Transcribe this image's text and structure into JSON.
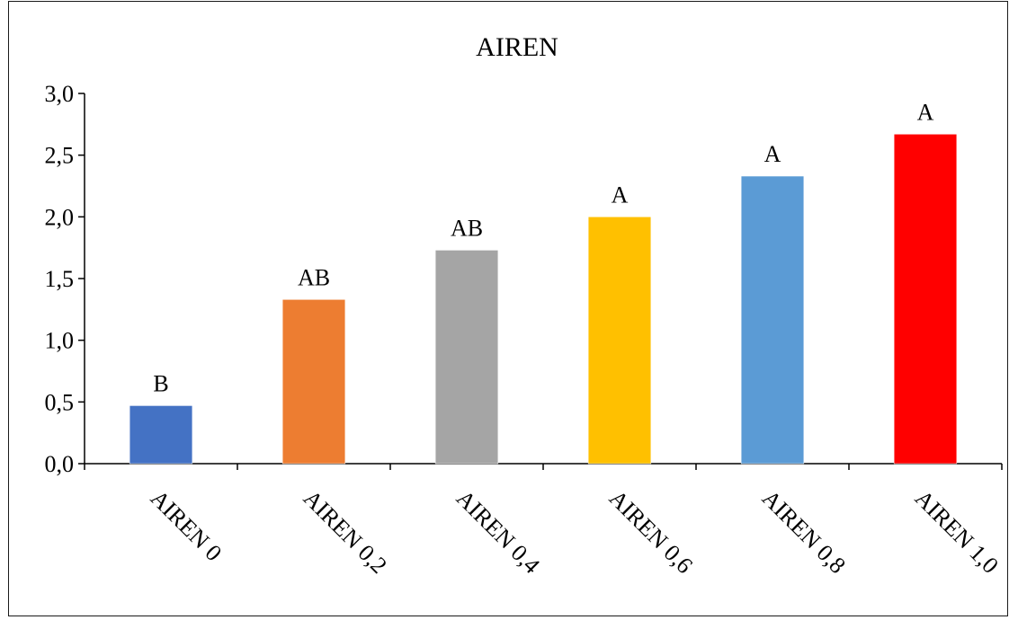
{
  "chart_data": {
    "type": "bar",
    "title": "AIREN",
    "xlabel": "",
    "ylabel": "",
    "categories": [
      "AIREN 0",
      "AIREN 0,2",
      "AIREN 0,4",
      "AIREN 0,6",
      "AIREN 0,8",
      "AIREN 1,0"
    ],
    "values": [
      0.47,
      1.33,
      1.73,
      2.0,
      2.33,
      2.67
    ],
    "data_labels": [
      "B",
      "AB",
      "AB",
      "A",
      "A",
      "A"
    ],
    "colors": [
      "#4472C4",
      "#ED7D31",
      "#A5A5A5",
      "#FFC000",
      "#5B9BD5",
      "#FF0000"
    ],
    "ylim": [
      0,
      3
    ],
    "yticks": [
      "0,0",
      "0,5",
      "1,0",
      "1,5",
      "2,0",
      "2,5",
      "3,0"
    ],
    "grid": false,
    "legend": "none"
  }
}
